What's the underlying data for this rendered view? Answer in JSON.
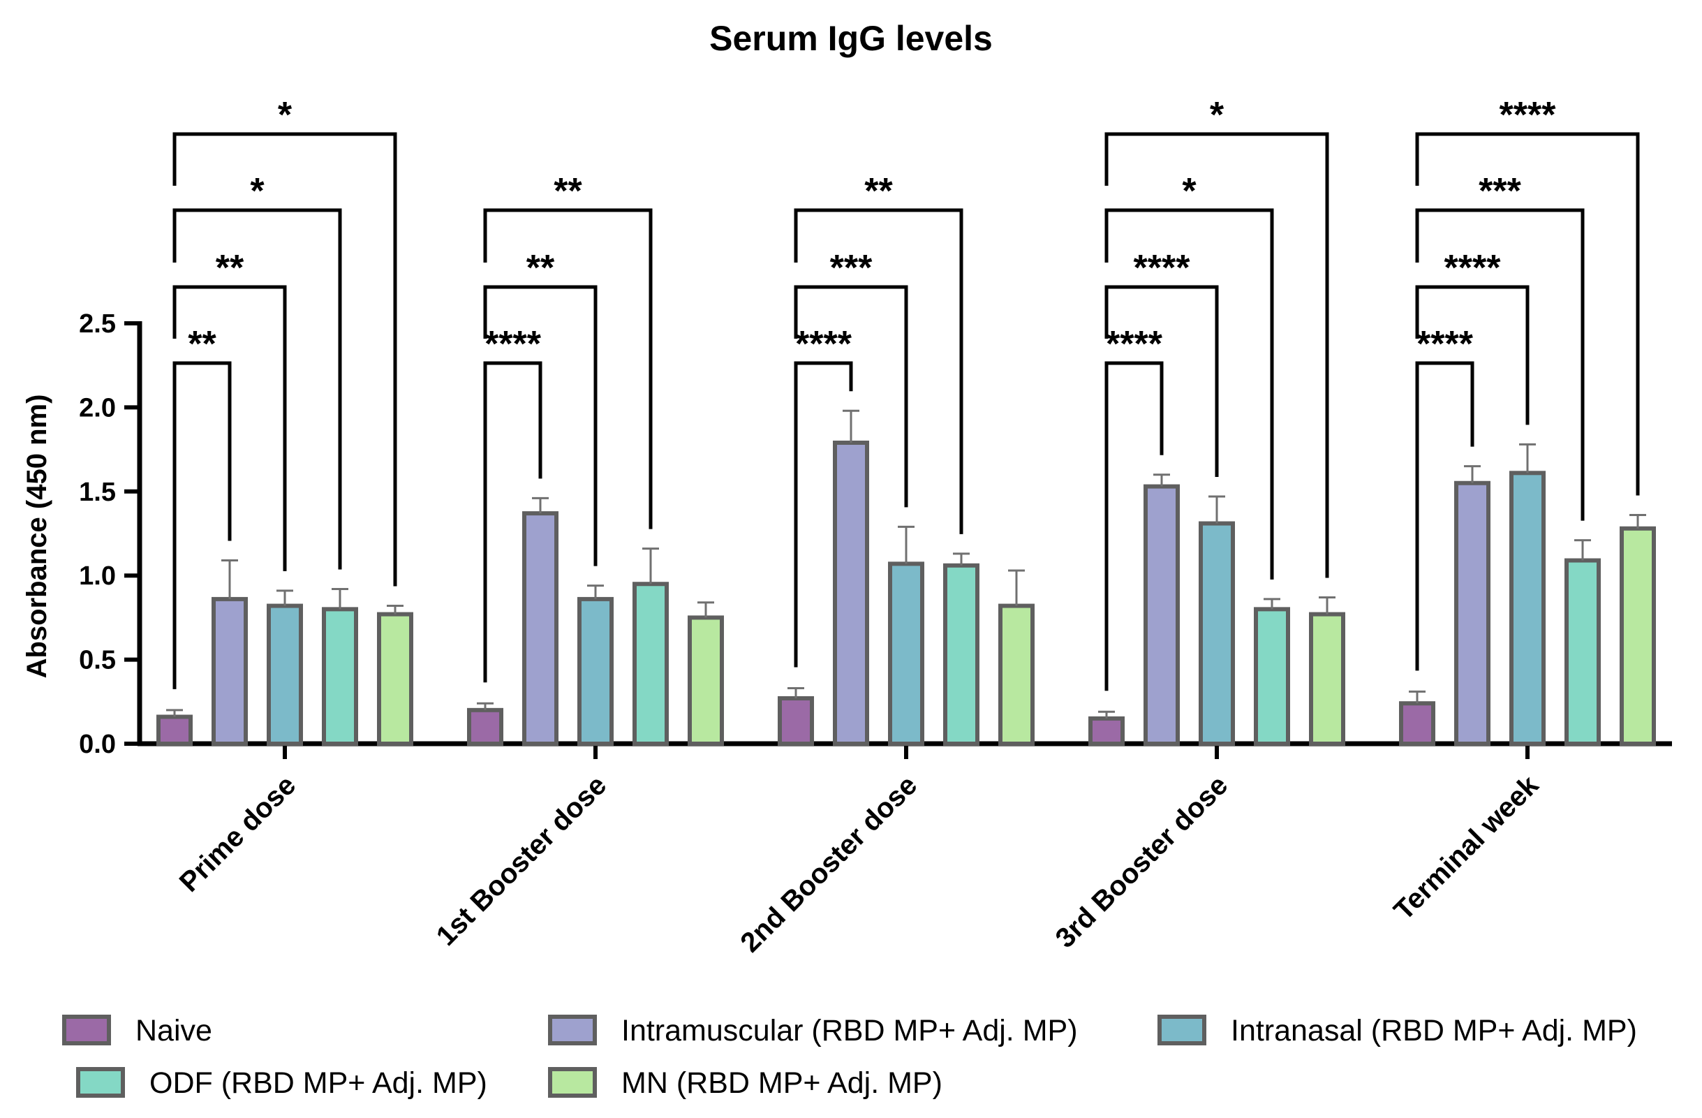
{
  "chart_data": {
    "type": "bar",
    "title": "Serum IgG levels",
    "xlabel": "",
    "ylabel": "Absorbance (450 nm)",
    "ylim": [
      0,
      2.5
    ],
    "yticks": [
      "0.0",
      "0.5",
      "1.0",
      "1.5",
      "2.0",
      "2.5"
    ],
    "categories": [
      "Prime dose",
      "1st Booster dose",
      "2nd Booster dose",
      "3rd Booster dose",
      "Terminal week"
    ],
    "series": [
      {
        "name": "Naive",
        "color": "#9b6aa6",
        "values": [
          0.16,
          0.2,
          0.27,
          0.15,
          0.24
        ],
        "errors": [
          0.04,
          0.04,
          0.06,
          0.04,
          0.07
        ]
      },
      {
        "name": "Intramuscular (RBD MP+ Adj. MP)",
        "color": "#9ea1ce",
        "values": [
          0.86,
          1.37,
          1.79,
          1.53,
          1.55
        ],
        "errors": [
          0.23,
          0.09,
          0.19,
          0.07,
          0.1
        ]
      },
      {
        "name": "Intranasal (RBD MP+ Adj. MP)",
        "color": "#7cbac9",
        "values": [
          0.82,
          0.86,
          1.07,
          1.31,
          1.61
        ],
        "errors": [
          0.09,
          0.08,
          0.22,
          0.16,
          0.17
        ]
      },
      {
        "name": "ODF (RBD MP+ Adj. MP)",
        "color": "#84d8c5",
        "values": [
          0.8,
          0.95,
          1.06,
          0.8,
          1.09
        ],
        "errors": [
          0.12,
          0.21,
          0.07,
          0.06,
          0.12
        ]
      },
      {
        "name": "MN (RBD MP+ Adj. MP)",
        "color": "#b8e8a0",
        "values": [
          0.77,
          0.75,
          0.82,
          0.77,
          1.28
        ],
        "errors": [
          0.05,
          0.09,
          0.21,
          0.1,
          0.08
        ]
      }
    ],
    "significance": [
      {
        "category": "Prime dose",
        "brackets": [
          {
            "to": "Intramuscular (RBD MP+ Adj. MP)",
            "label": "**"
          },
          {
            "to": "Intranasal (RBD MP+ Adj. MP)",
            "label": "**"
          },
          {
            "to": "ODF (RBD MP+ Adj. MP)",
            "label": "*"
          },
          {
            "to": "MN (RBD MP+ Adj. MP)",
            "label": "*"
          }
        ]
      },
      {
        "category": "1st Booster dose",
        "brackets": [
          {
            "to": "Intramuscular (RBD MP+ Adj. MP)",
            "label": "****"
          },
          {
            "to": "Intranasal (RBD MP+ Adj. MP)",
            "label": "**"
          },
          {
            "to": "ODF (RBD MP+ Adj. MP)",
            "label": "**"
          }
        ]
      },
      {
        "category": "2nd Booster dose",
        "brackets": [
          {
            "to": "Intramuscular (RBD MP+ Adj. MP)",
            "label": "****"
          },
          {
            "to": "Intranasal (RBD MP+ Adj. MP)",
            "label": "***"
          },
          {
            "to": "ODF (RBD MP+ Adj. MP)",
            "label": "**"
          }
        ]
      },
      {
        "category": "3rd Booster dose",
        "brackets": [
          {
            "to": "Intramuscular (RBD MP+ Adj. MP)",
            "label": "****"
          },
          {
            "to": "Intranasal (RBD MP+ Adj. MP)",
            "label": "****"
          },
          {
            "to": "ODF (RBD MP+ Adj. MP)",
            "label": "*"
          },
          {
            "to": "MN (RBD MP+ Adj. MP)",
            "label": "*"
          }
        ]
      },
      {
        "category": "Terminal week",
        "brackets": [
          {
            "to": "Intramuscular (RBD MP+ Adj. MP)",
            "label": "****"
          },
          {
            "to": "Intranasal (RBD MP+ Adj. MP)",
            "label": "****"
          },
          {
            "to": "ODF (RBD MP+ Adj. MP)",
            "label": "***"
          },
          {
            "to": "MN (RBD MP+ Adj. MP)",
            "label": "****"
          }
        ]
      }
    ],
    "legend": {
      "position": "bottom"
    },
    "grid": false
  }
}
